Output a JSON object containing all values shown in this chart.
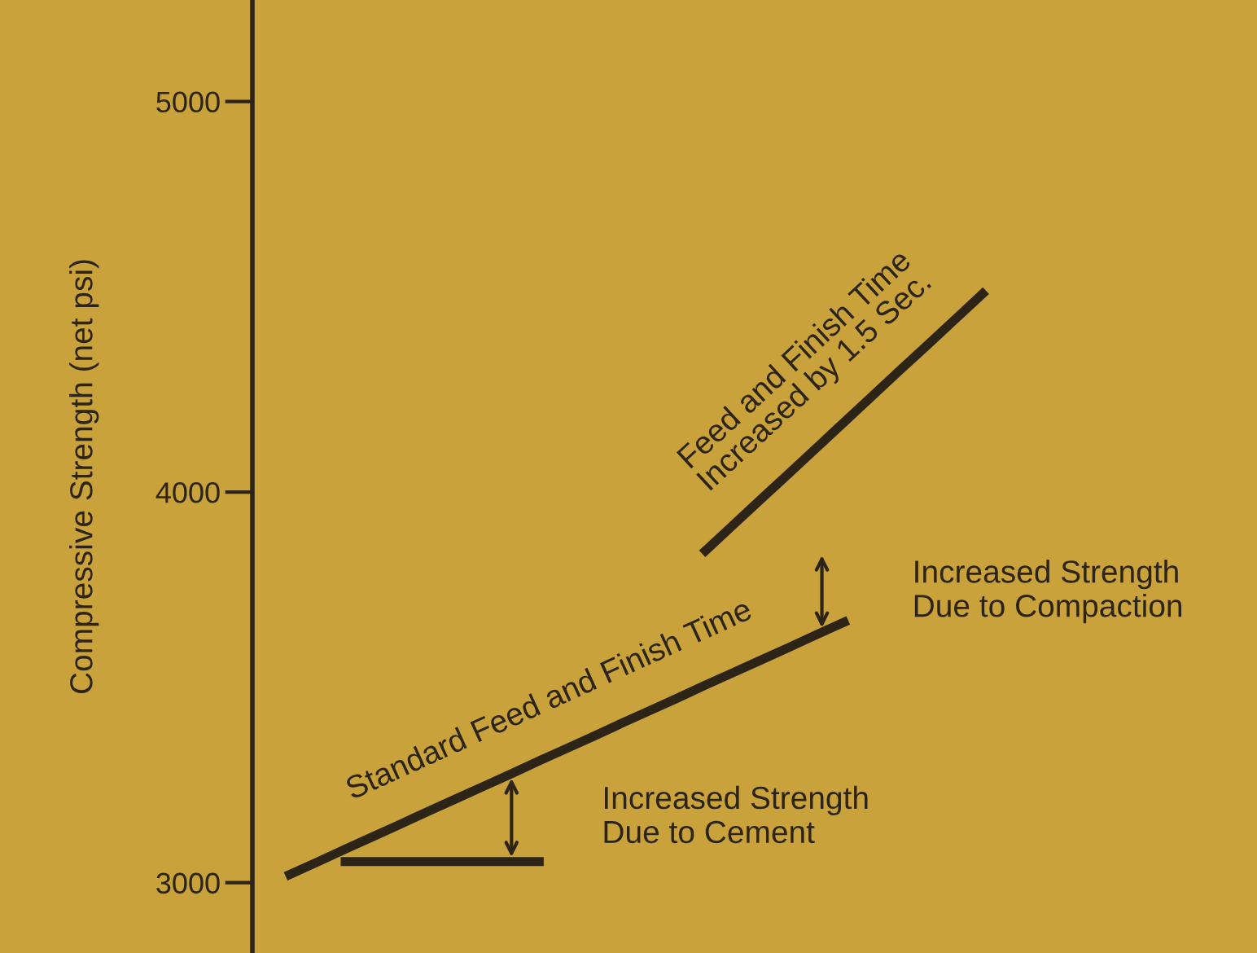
{
  "chart_data": {
    "type": "line",
    "ylabel": "Compressive Strength (net psi)",
    "ylim": [
      2820,
      5260
    ],
    "yticks": [
      3000,
      4000,
      5000
    ],
    "tick_labels": "y",
    "grid": false,
    "categories": [
      null,
      null,
      null,
      null,
      null,
      null,
      null,
      null,
      null,
      null,
      null,
      null,
      null,
      null,
      null,
      null,
      null,
      null,
      null,
      null,
      null,
      null,
      null,
      null,
      null,
      null,
      null,
      null,
      null,
      null,
      null,
      null,
      null,
      null,
      null
    ],
    "series": [
      {
        "name": "Standard Feed and Finish Time",
        "color": "#2b2417",
        "values": [
          3021,
          3053,
          3086,
          3118,
          3150,
          3183,
          3215,
          3247,
          3279,
          3312,
          3344,
          3376,
          3409,
          3441,
          3473,
          3506,
          3538,
          3570,
          3602,
          3635,
          3667,
          null,
          null,
          null,
          null,
          null,
          null,
          null,
          null,
          null,
          null,
          null,
          null,
          null,
          null
        ]
      },
      {
        "name": "Feed and Finish Time\nIncreased by 1.5 Sec.",
        "color": "#2b2417",
        "values": [
          null,
          null,
          null,
          null,
          null,
          null,
          null,
          null,
          null,
          null,
          null,
          null,
          null,
          null,
          null,
          3850,
          3916,
          3982,
          4047,
          4113,
          4179,
          4245,
          4311,
          4376,
          4442,
          4508,
          null,
          null,
          null,
          null,
          null,
          null,
          null,
          null,
          null
        ]
      },
      {
        "color": "#2b2417",
        "values": [
          null,
          null,
          3054,
          3054,
          3054,
          3054,
          3054,
          3054,
          3054,
          3054,
          null,
          null,
          null,
          null,
          null,
          null,
          null,
          null,
          null,
          null,
          null,
          null,
          null,
          null,
          null,
          null,
          null,
          null,
          null,
          null,
          null,
          null,
          null,
          null,
          null
        ]
      }
    ],
    "annotations": [
      "Increased Strength\nDue to Compaction",
      "Increased Strength\nDue to Cement"
    ]
  }
}
